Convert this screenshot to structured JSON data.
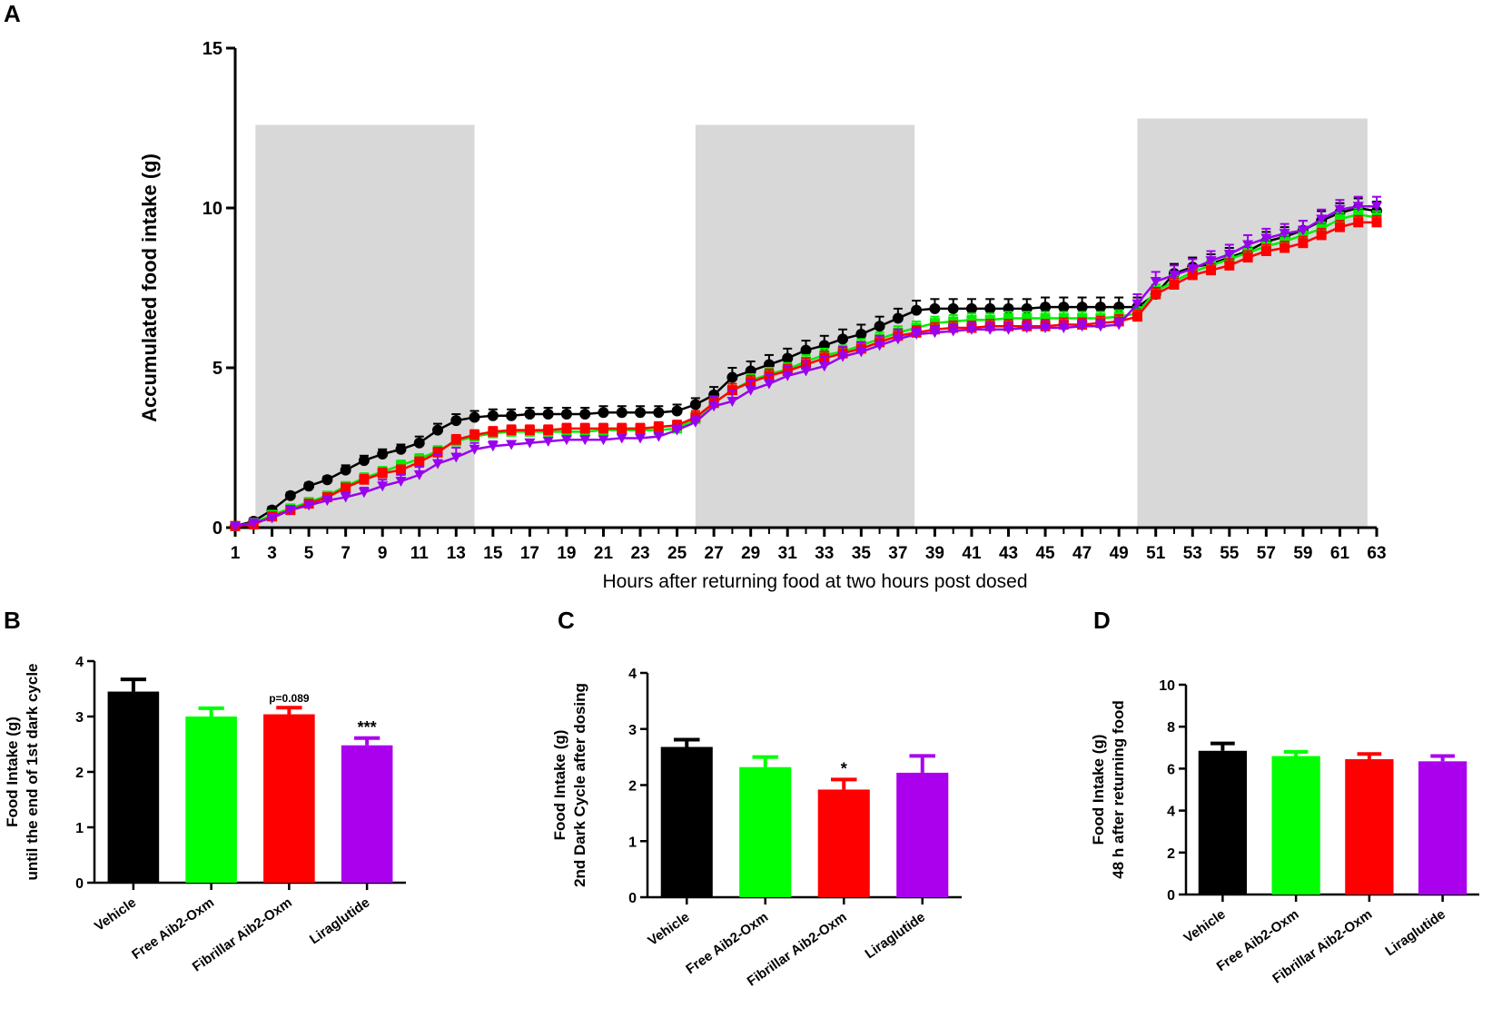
{
  "figure": {
    "panels": {
      "A": "A",
      "B": "B",
      "C": "C",
      "D": "D"
    }
  },
  "chart_data": [
    {
      "id": "A",
      "type": "line",
      "title": "",
      "xlabel": "Hours after returning food at two hours post dosed",
      "ylabel": "Accumulated food intake (g)",
      "xlim": [
        1,
        63
      ],
      "ylim": [
        0,
        15
      ],
      "xticks": [
        1,
        3,
        5,
        7,
        9,
        11,
        13,
        15,
        17,
        19,
        21,
        23,
        25,
        27,
        29,
        31,
        33,
        35,
        37,
        39,
        41,
        43,
        45,
        47,
        49,
        51,
        53,
        55,
        57,
        59,
        61,
        63
      ],
      "xtick_labels": [
        "1",
        "3",
        "5",
        "7",
        "9",
        "11",
        "13",
        "15",
        "17",
        "19",
        "21",
        "23",
        "25",
        "27",
        "29",
        "31",
        "33",
        "35",
        "37",
        "39",
        "41",
        "43",
        "45",
        "47",
        "49",
        "51",
        "53",
        "55",
        "57",
        "59",
        "61",
        "63"
      ],
      "yticks": [
        0,
        5,
        10,
        15
      ],
      "ytick_labels": [
        "0",
        "5",
        "10",
        "15"
      ],
      "shaded_regions": [
        {
          "x": [
            2.1,
            14.0
          ],
          "y": [
            0,
            12.6
          ]
        },
        {
          "x": [
            26.0,
            37.9
          ],
          "y": [
            0,
            12.6
          ]
        },
        {
          "x": [
            50.0,
            62.5
          ],
          "y": [
            0,
            12.8
          ]
        }
      ],
      "x": [
        1,
        2,
        3,
        4,
        5,
        6,
        7,
        8,
        9,
        10,
        11,
        12,
        13,
        14,
        15,
        16,
        17,
        18,
        19,
        20,
        21,
        22,
        23,
        24,
        25,
        26,
        27,
        28,
        29,
        30,
        31,
        32,
        33,
        34,
        35,
        36,
        37,
        38,
        39,
        40,
        41,
        42,
        43,
        44,
        45,
        46,
        47,
        48,
        49,
        50,
        51,
        52,
        53,
        54,
        55,
        56,
        57,
        58,
        59,
        60,
        61,
        62,
        63
      ],
      "series": [
        {
          "name": "Vehicle",
          "color": "#000000",
          "marker": "circle",
          "values": [
            0.05,
            0.2,
            0.55,
            1.0,
            1.3,
            1.5,
            1.8,
            2.1,
            2.3,
            2.45,
            2.65,
            3.05,
            3.35,
            3.45,
            3.5,
            3.5,
            3.55,
            3.55,
            3.55,
            3.55,
            3.6,
            3.6,
            3.6,
            3.6,
            3.65,
            3.85,
            4.15,
            4.7,
            4.9,
            5.1,
            5.3,
            5.55,
            5.7,
            5.9,
            6.05,
            6.3,
            6.55,
            6.8,
            6.85,
            6.85,
            6.85,
            6.85,
            6.85,
            6.85,
            6.9,
            6.9,
            6.9,
            6.9,
            6.9,
            6.9,
            7.3,
            7.95,
            8.15,
            8.25,
            8.45,
            8.65,
            8.95,
            9.1,
            9.3,
            9.6,
            9.85,
            10.0,
            9.9
          ],
          "errors": [
            0.05,
            0.1,
            0.1,
            0.1,
            0.1,
            0.1,
            0.15,
            0.15,
            0.15,
            0.15,
            0.2,
            0.2,
            0.2,
            0.2,
            0.2,
            0.2,
            0.2,
            0.2,
            0.2,
            0.2,
            0.2,
            0.2,
            0.2,
            0.2,
            0.2,
            0.2,
            0.25,
            0.3,
            0.3,
            0.3,
            0.3,
            0.3,
            0.3,
            0.3,
            0.3,
            0.3,
            0.3,
            0.3,
            0.3,
            0.3,
            0.3,
            0.3,
            0.3,
            0.3,
            0.3,
            0.3,
            0.3,
            0.3,
            0.3,
            0.3,
            0.3,
            0.3,
            0.3,
            0.3,
            0.3,
            0.3,
            0.3,
            0.3,
            0.3,
            0.3,
            0.3,
            0.3,
            0.3
          ]
        },
        {
          "name": "Free Aib2-Oxm",
          "color": "#00ee00",
          "marker": "square",
          "values": [
            0.05,
            0.15,
            0.4,
            0.6,
            0.8,
            1.0,
            1.3,
            1.55,
            1.75,
            1.95,
            2.15,
            2.4,
            2.7,
            2.85,
            2.95,
            3.0,
            3.0,
            3.0,
            3.0,
            3.0,
            3.05,
            3.05,
            3.05,
            3.05,
            3.1,
            3.4,
            3.9,
            4.3,
            4.6,
            4.8,
            4.95,
            5.2,
            5.4,
            5.5,
            5.7,
            5.9,
            6.1,
            6.25,
            6.4,
            6.45,
            6.5,
            6.5,
            6.55,
            6.55,
            6.55,
            6.55,
            6.55,
            6.55,
            6.6,
            6.7,
            7.4,
            7.7,
            8.0,
            8.2,
            8.4,
            8.6,
            8.8,
            8.95,
            9.15,
            9.35,
            9.65,
            9.8,
            9.7
          ],
          "errors": [
            0.05,
            0.1,
            0.1,
            0.1,
            0.1,
            0.1,
            0.1,
            0.15,
            0.15,
            0.15,
            0.15,
            0.15,
            0.15,
            0.15,
            0.15,
            0.15,
            0.15,
            0.15,
            0.15,
            0.15,
            0.15,
            0.15,
            0.15,
            0.15,
            0.15,
            0.2,
            0.2,
            0.2,
            0.2,
            0.2,
            0.2,
            0.2,
            0.2,
            0.2,
            0.2,
            0.2,
            0.2,
            0.2,
            0.2,
            0.2,
            0.2,
            0.2,
            0.2,
            0.2,
            0.2,
            0.2,
            0.2,
            0.2,
            0.2,
            0.2,
            0.2,
            0.2,
            0.2,
            0.2,
            0.2,
            0.2,
            0.2,
            0.2,
            0.2,
            0.2,
            0.2,
            0.2,
            0.2
          ]
        },
        {
          "name": "Fibrillar Aib2-Oxm",
          "color": "#ff0000",
          "marker": "square",
          "values": [
            0.05,
            0.1,
            0.35,
            0.55,
            0.75,
            0.95,
            1.25,
            1.5,
            1.7,
            1.8,
            2.05,
            2.35,
            2.75,
            2.9,
            3.0,
            3.05,
            3.05,
            3.05,
            3.1,
            3.1,
            3.1,
            3.1,
            3.1,
            3.15,
            3.2,
            3.45,
            3.9,
            4.3,
            4.55,
            4.75,
            4.9,
            5.1,
            5.3,
            5.45,
            5.6,
            5.8,
            6.0,
            6.1,
            6.2,
            6.25,
            6.25,
            6.3,
            6.3,
            6.3,
            6.3,
            6.35,
            6.35,
            6.4,
            6.45,
            6.6,
            7.3,
            7.6,
            7.9,
            8.05,
            8.2,
            8.45,
            8.65,
            8.75,
            8.9,
            9.15,
            9.4,
            9.55,
            9.55
          ],
          "errors": [
            0.05,
            0.1,
            0.1,
            0.1,
            0.1,
            0.1,
            0.1,
            0.15,
            0.15,
            0.15,
            0.15,
            0.15,
            0.15,
            0.15,
            0.15,
            0.15,
            0.15,
            0.15,
            0.15,
            0.15,
            0.15,
            0.15,
            0.15,
            0.15,
            0.15,
            0.2,
            0.2,
            0.2,
            0.2,
            0.2,
            0.2,
            0.2,
            0.2,
            0.2,
            0.2,
            0.2,
            0.2,
            0.2,
            0.2,
            0.2,
            0.2,
            0.2,
            0.2,
            0.2,
            0.2,
            0.2,
            0.2,
            0.2,
            0.2,
            0.2,
            0.2,
            0.2,
            0.2,
            0.2,
            0.2,
            0.2,
            0.2,
            0.2,
            0.2,
            0.2,
            0.2,
            0.2,
            0.2
          ]
        },
        {
          "name": "Liraglutide",
          "color": "#9900ee",
          "marker": "triangle-down",
          "values": [
            0.05,
            0.15,
            0.3,
            0.55,
            0.7,
            0.85,
            0.95,
            1.1,
            1.3,
            1.45,
            1.65,
            2.0,
            2.2,
            2.45,
            2.55,
            2.6,
            2.65,
            2.7,
            2.75,
            2.75,
            2.75,
            2.8,
            2.8,
            2.85,
            3.05,
            3.3,
            3.8,
            3.95,
            4.3,
            4.5,
            4.75,
            4.9,
            5.05,
            5.35,
            5.5,
            5.7,
            5.9,
            6.05,
            6.1,
            6.15,
            6.2,
            6.2,
            6.2,
            6.25,
            6.25,
            6.25,
            6.3,
            6.3,
            6.35,
            7.0,
            7.7,
            7.9,
            8.1,
            8.35,
            8.55,
            8.85,
            9.05,
            9.2,
            9.3,
            9.65,
            9.95,
            10.05,
            10.05
          ],
          "errors": [
            0.05,
            0.1,
            0.1,
            0.1,
            0.1,
            0.1,
            0.15,
            0.15,
            0.2,
            0.2,
            0.25,
            0.3,
            0.3,
            0.2,
            0.15,
            0.1,
            0.1,
            0.1,
            0.1,
            0.1,
            0.1,
            0.1,
            0.1,
            0.1,
            0.15,
            0.2,
            0.3,
            0.35,
            0.3,
            0.3,
            0.3,
            0.3,
            0.3,
            0.3,
            0.3,
            0.3,
            0.3,
            0.2,
            0.2,
            0.2,
            0.2,
            0.2,
            0.2,
            0.2,
            0.2,
            0.2,
            0.2,
            0.2,
            0.2,
            0.3,
            0.3,
            0.3,
            0.3,
            0.3,
            0.3,
            0.3,
            0.3,
            0.3,
            0.3,
            0.3,
            0.3,
            0.3,
            0.3
          ]
        }
      ]
    },
    {
      "id": "B",
      "type": "bar",
      "title": "",
      "categories": [
        "Vehicle",
        "Free Aib2-Oxm",
        "Fibrillar Aib2-Oxm",
        "Liraglutide"
      ],
      "values": [
        3.45,
        3.0,
        3.04,
        2.48
      ],
      "errors": [
        0.22,
        0.15,
        0.12,
        0.13
      ],
      "colors": [
        "#000000",
        "#00ff00",
        "#ff0000",
        "#aa00ee"
      ],
      "annotations": [
        "",
        "",
        "p=0.089",
        "***"
      ],
      "ylabel_lines": [
        "Food Intake  (g)",
        "until the end of 1st dark cycle"
      ],
      "ylim": [
        0,
        4
      ],
      "yticks": [
        0,
        1,
        2,
        3,
        4
      ],
      "ytick_labels": [
        "0",
        "1",
        "2",
        "3",
        "4"
      ]
    },
    {
      "id": "C",
      "type": "bar",
      "title": "",
      "categories": [
        "Vehicle",
        "Free Aib2-Oxm",
        "Fibrillar Aib2-Oxm",
        "Liraglutide"
      ],
      "values": [
        2.68,
        2.32,
        1.92,
        2.22
      ],
      "errors": [
        0.13,
        0.18,
        0.18,
        0.3
      ],
      "colors": [
        "#000000",
        "#00ff00",
        "#ff0000",
        "#aa00ee"
      ],
      "annotations": [
        "",
        "",
        "*",
        ""
      ],
      "ylabel_lines": [
        "Food Intake  (g)",
        "2nd Dark Cycle after dosing"
      ],
      "ylim": [
        0,
        4
      ],
      "yticks": [
        0,
        1,
        2,
        3,
        4
      ],
      "ytick_labels": [
        "0",
        "1",
        "2",
        "3",
        "4"
      ]
    },
    {
      "id": "D",
      "type": "bar",
      "title": "",
      "categories": [
        "Vehicle",
        "Free Aib2-Oxm",
        "Fibrillar Aib2-Oxm",
        "Liraglutide"
      ],
      "values": [
        6.85,
        6.6,
        6.45,
        6.35
      ],
      "errors": [
        0.35,
        0.2,
        0.25,
        0.25
      ],
      "colors": [
        "#000000",
        "#00ff00",
        "#ff0000",
        "#aa00ee"
      ],
      "annotations": [
        "",
        "",
        "",
        ""
      ],
      "ylabel_lines": [
        "Food Intake  (g)",
        "48 h after returning food"
      ],
      "ylim": [
        0,
        10
      ],
      "yticks": [
        0,
        2,
        4,
        6,
        8,
        10
      ],
      "ytick_labels": [
        "0",
        "2",
        "4",
        "6",
        "8",
        "10"
      ]
    }
  ]
}
